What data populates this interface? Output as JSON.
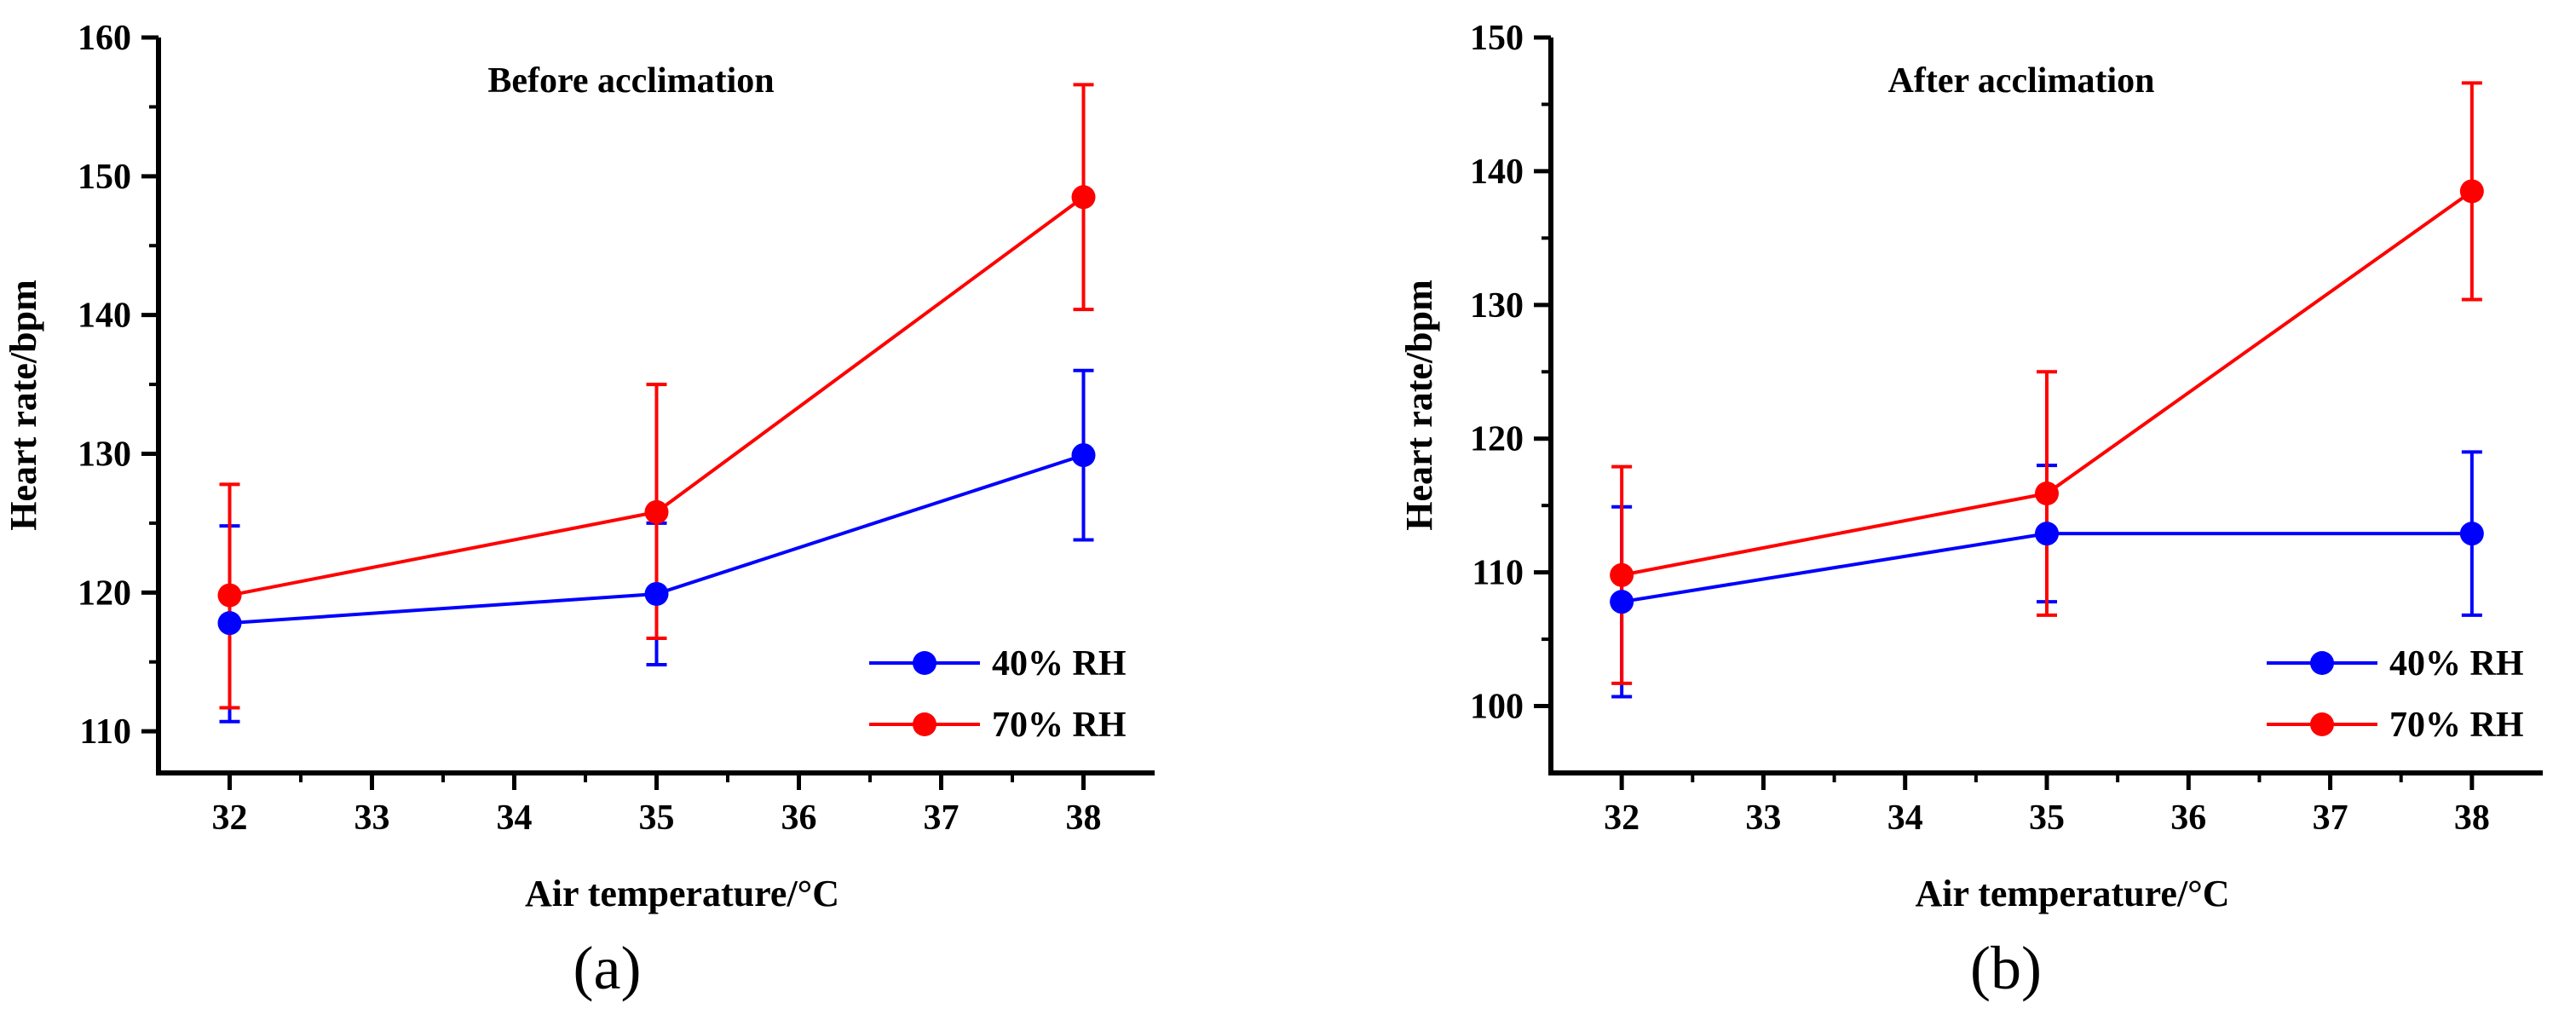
{
  "chart_data": [
    {
      "type": "line",
      "panel_label": "(a)",
      "title": "Before acclimation",
      "xlabel": "Air temperature/°C",
      "ylabel": "Heart rate/bpm",
      "xlim": [
        31.5,
        38.5
      ],
      "ylim": [
        107,
        160
      ],
      "xticks": [
        32,
        33,
        34,
        35,
        36,
        37,
        38
      ],
      "yticks": [
        110,
        120,
        130,
        140,
        150,
        160
      ],
      "x": [
        32,
        35,
        38
      ],
      "legend_position": "lower-right",
      "series": [
        {
          "name": "40% RH",
          "color": "#0000ff",
          "values": [
            117.8,
            119.9,
            129.9
          ],
          "err_low": [
            110.7,
            114.8,
            123.8
          ],
          "err_high": [
            124.8,
            125.0,
            136.0
          ]
        },
        {
          "name": "70% RH",
          "color": "#ff0000",
          "values": [
            119.8,
            125.8,
            148.5
          ],
          "err_low": [
            111.7,
            116.7,
            140.4
          ],
          "err_high": [
            127.8,
            135.0,
            156.6
          ]
        }
      ]
    },
    {
      "type": "line",
      "panel_label": "(b)",
      "title": "After acclimation",
      "xlabel": "Air temperature/°C",
      "ylabel": "Heart rate/bpm",
      "xlim": [
        31.5,
        38.5
      ],
      "ylim": [
        95,
        150
      ],
      "xticks": [
        32,
        33,
        34,
        35,
        36,
        37,
        38
      ],
      "yticks": [
        100,
        110,
        120,
        130,
        140,
        150
      ],
      "x": [
        32,
        35,
        38
      ],
      "legend_position": "lower-right",
      "series": [
        {
          "name": "40% RH",
          "color": "#0000ff",
          "values": [
            107.8,
            112.9,
            112.9
          ],
          "err_low": [
            100.7,
            107.8,
            106.8
          ],
          "err_high": [
            114.9,
            118.0,
            119.0
          ]
        },
        {
          "name": "70% RH",
          "color": "#ff0000",
          "values": [
            109.8,
            115.9,
            138.5
          ],
          "err_low": [
            101.7,
            106.8,
            130.4
          ],
          "err_high": [
            117.9,
            125.0,
            146.6
          ]
        }
      ]
    }
  ]
}
